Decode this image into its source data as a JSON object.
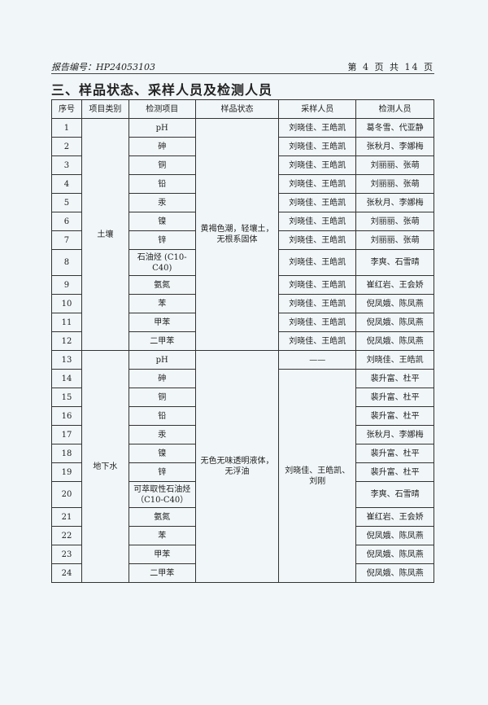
{
  "header": {
    "report_no": "报告编号：HP24053103",
    "page": "第 4 页 共 14 页"
  },
  "section_title": "三、样品状态、采样人员及检测人员",
  "table": {
    "columns": [
      "序号",
      "项目类别",
      "检测项目",
      "样品状态",
      "采样人员",
      "检测人员"
    ],
    "groups": [
      {
        "category": "土壤",
        "sample_state": "黄褐色潮，轻壤土，无根系固体",
        "rows": [
          {
            "no": "1",
            "item": "pH",
            "sampler": "刘晓佳、王皓凯",
            "tester": "葛冬雪、代亚静"
          },
          {
            "no": "2",
            "item": "砷",
            "sampler": "刘晓佳、王皓凯",
            "tester": "张秋月、李娜梅"
          },
          {
            "no": "3",
            "item": "铜",
            "sampler": "刘晓佳、王皓凯",
            "tester": "刘丽丽、张萌"
          },
          {
            "no": "4",
            "item": "铅",
            "sampler": "刘晓佳、王皓凯",
            "tester": "刘丽丽、张萌"
          },
          {
            "no": "5",
            "item": "汞",
            "sampler": "刘晓佳、王皓凯",
            "tester": "张秋月、李娜梅"
          },
          {
            "no": "6",
            "item": "镍",
            "sampler": "刘晓佳、王皓凯",
            "tester": "刘丽丽、张萌"
          },
          {
            "no": "7",
            "item": "锌",
            "sampler": "刘晓佳、王皓凯",
            "tester": "刘丽丽、张萌"
          },
          {
            "no": "8",
            "item": "石油烃 (C10-C40)",
            "sampler": "刘晓佳、王皓凯",
            "tester": "李爽、石雪晴"
          },
          {
            "no": "9",
            "item": "氨氮",
            "sampler": "刘晓佳、王皓凯",
            "tester": "崔红岩、王会娇"
          },
          {
            "no": "10",
            "item": "苯",
            "sampler": "刘晓佳、王皓凯",
            "tester": "倪凤娥、陈凤燕"
          },
          {
            "no": "11",
            "item": "甲苯",
            "sampler": "刘晓佳、王皓凯",
            "tester": "倪凤娥、陈凤燕"
          },
          {
            "no": "12",
            "item": "二甲苯",
            "sampler": "刘晓佳、王皓凯",
            "tester": "倪凤娥、陈凤燕"
          }
        ]
      },
      {
        "category": "地下水",
        "sample_state": "无色无味透明液体，无浮油",
        "sampler_ph": "——",
        "sampler_rest": "刘晓佳、王皓凯、刘刚",
        "rows": [
          {
            "no": "13",
            "item": "pH",
            "tester": "刘晓佳、王皓凯"
          },
          {
            "no": "14",
            "item": "砷",
            "tester": "裴升富、杜平"
          },
          {
            "no": "15",
            "item": "铜",
            "tester": "裴升富、杜平"
          },
          {
            "no": "16",
            "item": "铅",
            "tester": "裴升富、杜平"
          },
          {
            "no": "17",
            "item": "汞",
            "tester": "张秋月、李娜梅"
          },
          {
            "no": "18",
            "item": "镍",
            "tester": "裴升富、杜平"
          },
          {
            "no": "19",
            "item": "锌",
            "tester": "裴升富、杜平"
          },
          {
            "no": "20",
            "item": "可萃取性石油烃（C10-C40）",
            "tester": "李爽、石雪晴"
          },
          {
            "no": "21",
            "item": "氨氮",
            "tester": "崔红岩、王会娇"
          },
          {
            "no": "22",
            "item": "苯",
            "tester": "倪凤娥、陈凤燕"
          },
          {
            "no": "23",
            "item": "甲苯",
            "tester": "倪凤娥、陈凤燕"
          },
          {
            "no": "24",
            "item": "二甲苯",
            "tester": "倪凤娥、陈凤燕"
          }
        ]
      }
    ]
  }
}
